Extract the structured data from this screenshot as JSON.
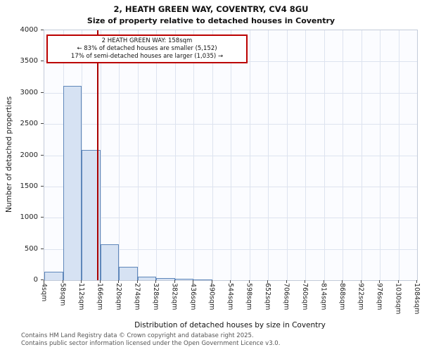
{
  "title": {
    "line1": "2, HEATH GREEN WAY, COVENTRY, CV4 8GU",
    "line2": "Size of property relative to detached houses in Coventry"
  },
  "annotation": {
    "line1": "2 HEATH GREEN WAY: 158sqm",
    "line2": "← 83% of detached houses are smaller (5,152)",
    "line3": "17% of semi-detached houses are larger (1,035) →"
  },
  "footer": {
    "line1": "Contains HM Land Registry data © Crown copyright and database right 2025.",
    "line2": "Contains public sector information licensed under the Open Government Licence v3.0."
  },
  "chart_data": {
    "type": "bar",
    "title": "2, HEATH GREEN WAY, COVENTRY, CV4 8GU — Size of property relative to detached houses in Coventry",
    "xlabel": "Distribution of detached houses by size in Coventry",
    "ylabel": "Number of detached properties",
    "tick_labels": [
      "4sqm",
      "58sqm",
      "112sqm",
      "166sqm",
      "220sqm",
      "274sqm",
      "328sqm",
      "382sqm",
      "436sqm",
      "490sqm",
      "544sqm",
      "598sqm",
      "652sqm",
      "706sqm",
      "760sqm",
      "814sqm",
      "868sqm",
      "922sqm",
      "976sqm",
      "1030sqm",
      "1084sqm"
    ],
    "bin_start": 4,
    "bin_size": 54,
    "values": [
      140,
      3110,
      2090,
      570,
      210,
      60,
      30,
      18,
      10,
      0,
      0,
      0,
      0,
      0,
      0,
      0,
      0,
      0,
      0,
      0
    ],
    "ylim": [
      0,
      4000
    ],
    "yticks": [
      0,
      500,
      1000,
      1500,
      2000,
      2500,
      3000,
      3500,
      4000
    ],
    "marker_value": 158,
    "marker_label": "2 HEATH GREEN WAY: 158sqm",
    "marker_color": "#aa0000",
    "bar_fill": "#d6e2f3",
    "bar_border": "#5f87ba",
    "grid": true,
    "legend": "none"
  }
}
